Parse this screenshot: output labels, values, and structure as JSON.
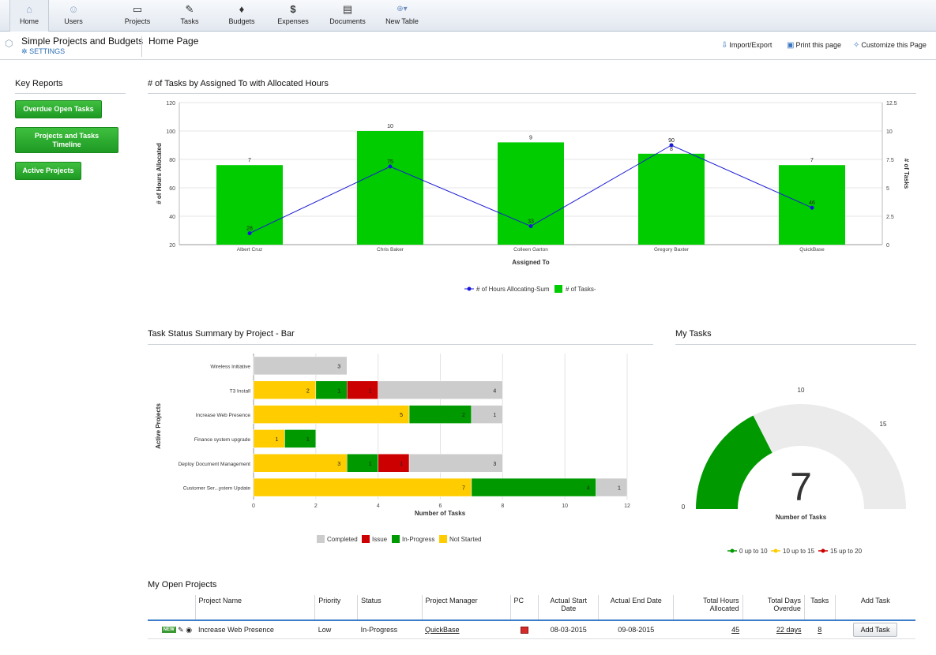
{
  "nav": [
    {
      "label": "Home",
      "icon": "home-icon"
    },
    {
      "label": "Users",
      "icon": "user-icon"
    },
    {
      "label": "Projects",
      "icon": "folder-icon"
    },
    {
      "label": "Tasks",
      "icon": "clipboard-icon"
    },
    {
      "label": "Budgets",
      "icon": "moneybag-icon"
    },
    {
      "label": "Expenses",
      "icon": "dollar-icon"
    },
    {
      "label": "Documents",
      "icon": "documents-icon"
    },
    {
      "label": "New Table",
      "icon": "plus-circle-icon"
    }
  ],
  "header": {
    "app_title": "Simple Projects and Budgets",
    "settings": "SETTINGS",
    "page_name": "Home Page",
    "import_export": "Import/Export",
    "print": "Print this page",
    "customize": "Customize this Page"
  },
  "sidebar": {
    "title": "Key Reports",
    "buttons": [
      "Overdue Open Tasks",
      "Projects and Tasks Timeline",
      "Active Projects"
    ]
  },
  "chart1": {
    "title": "# of Tasks by Assigned To with Allocated Hours",
    "legend_line": "# of Hours Allocating-Sum",
    "legend_bar": "# of Tasks-",
    "colors": {
      "bar": "#00cc00",
      "line": "#1a1ad6"
    }
  },
  "chart2": {
    "title": "Task Status Summary by Project - Bar",
    "colors": {
      "Completed": "#cccccc",
      "Issue": "#cc0000",
      "In-Progress": "#009900",
      "Not Started": "#ffcc00"
    }
  },
  "mytasks": {
    "title": "My Tasks",
    "value": "7",
    "label": "Number of Tasks",
    "scale": {
      "min": "0",
      "mid": "10",
      "q3": "15"
    },
    "legend": [
      {
        "label": "0 up to 10",
        "color": "#009900"
      },
      {
        "label": "10 up to 15",
        "color": "#ffcc00"
      },
      {
        "label": "15 up to 20",
        "color": "#cc0000"
      }
    ]
  },
  "projects": {
    "title": "My Open Projects",
    "headers": [
      "Project Name",
      "Priority",
      "Status",
      "Project Manager",
      "PC",
      "Actual Start Date",
      "Actual End Date",
      "Total Hours Allocated",
      "Total Days Overdue",
      "Tasks",
      "Add Task"
    ],
    "row": {
      "badge": "NEW",
      "name": "Increase Web Presence",
      "priority": "Low",
      "status": "In-Progress",
      "manager": "QuickBase",
      "start": "08-03-2015",
      "end": "09-08-2015",
      "hours": "45",
      "overdue": "22 days",
      "tasks": "8",
      "button": "Add Task"
    }
  },
  "chart_data": [
    {
      "type": "bar",
      "title": "# of Tasks by Assigned To with Allocated Hours",
      "xlabel": "Assigned To",
      "ylabel": "# of Hours Allocated",
      "y2label": "# of Tasks",
      "categories": [
        "Albert Cruz",
        "Chris Baker",
        "Colleen Garton",
        "Gregory Baxter",
        "QuickBase"
      ],
      "series": [
        {
          "name": "# of Tasks-",
          "type": "bar",
          "axis": "right",
          "values": [
            7,
            10,
            9,
            8,
            7
          ]
        },
        {
          "name": "# of Hours Allocating-Sum",
          "type": "line",
          "axis": "left",
          "values": [
            28,
            75,
            33,
            90,
            46
          ]
        }
      ],
      "ylim": [
        20,
        120
      ],
      "y2lim": [
        0,
        12.5
      ],
      "yticks": [
        20,
        40,
        60,
        80,
        100,
        120
      ],
      "y2ticks": [
        "0",
        "2.5",
        "5",
        "7.5",
        "10",
        "12.5"
      ],
      "legend": "bottom"
    },
    {
      "type": "bar",
      "orientation": "horizontal",
      "stacked": true,
      "title": "Task Status Summary by Project - Bar",
      "xlabel": "Number of Tasks",
      "ylabel": "Active Projects",
      "categories": [
        "Wireless Initiative",
        "T3 Install",
        "Increase Web Presence",
        "Finance system upgrade",
        "Deploy Document Management",
        "Customer Ser...ystem Update"
      ],
      "series": [
        {
          "name": "Not Started",
          "values": [
            0,
            2,
            5,
            1,
            3,
            7
          ]
        },
        {
          "name": "In-Progress",
          "values": [
            0,
            1,
            2,
            1,
            1,
            4
          ]
        },
        {
          "name": "Issue",
          "values": [
            0,
            1,
            0,
            0,
            1,
            0
          ]
        },
        {
          "name": "Completed",
          "values": [
            3,
            4,
            1,
            0,
            3,
            1
          ]
        }
      ],
      "xlim": [
        0,
        12
      ],
      "xticks": [
        0,
        2,
        4,
        6,
        8,
        10,
        12
      ],
      "legend_order": [
        "Completed",
        "Issue",
        "In-Progress",
        "Not Started"
      ],
      "legend": "bottom"
    },
    {
      "type": "gauge",
      "title": "My Tasks",
      "value": 7,
      "range": [
        0,
        20
      ],
      "bands": [
        {
          "name": "0 up to 10",
          "from": 0,
          "to": 10
        },
        {
          "name": "10 up to 15",
          "from": 10,
          "to": 15
        },
        {
          "name": "15 up to 20",
          "from": 15,
          "to": 20
        }
      ],
      "label": "Number of Tasks"
    }
  ]
}
